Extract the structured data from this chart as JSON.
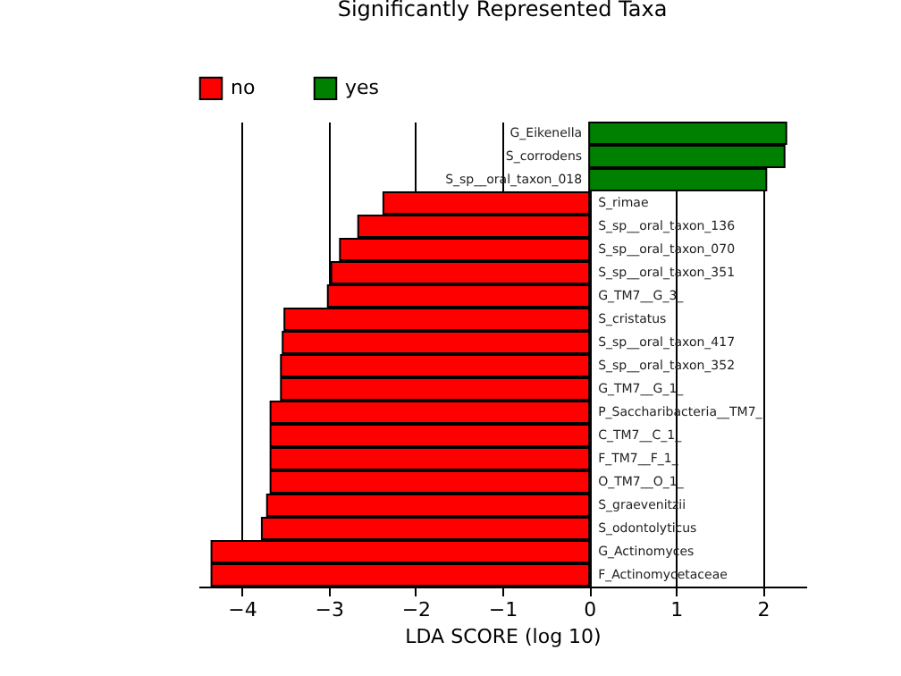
{
  "chart_data": {
    "type": "bar",
    "orientation": "horizontal",
    "title": "Significantly Represented Taxa",
    "xlabel": "LDA SCORE (log 10)",
    "categories": [
      "G_Eikenella",
      "S_corrodens",
      "S_sp__oral_taxon_018",
      "S_rimae",
      "S_sp__oral_taxon_136",
      "S_sp__oral_taxon_070",
      "S_sp__oral_taxon_351",
      "G_TM7__G_3_",
      "S_cristatus",
      "S_sp__oral_taxon_417",
      "S_sp__oral_taxon_352",
      "G_TM7__G_1_",
      "P_Saccharibacteria__TM7_",
      "C_TM7__C_1_",
      "F_TM7__F_1_",
      "O_TM7__O_1_",
      "S_graevenitzii",
      "S_odontolyticus",
      "G_Actinomyces",
      "F_Actinomycetaceae"
    ],
    "series": [
      {
        "name": "no",
        "color": "#ff0000",
        "values": [
          null,
          null,
          null,
          -2.37,
          -2.66,
          -2.87,
          -2.97,
          -3.01,
          -3.51,
          -3.53,
          -3.55,
          -3.55,
          -3.67,
          -3.67,
          -3.67,
          -3.67,
          -3.71,
          -3.77,
          -4.35,
          -4.35
        ]
      },
      {
        "name": "yes",
        "color": "#008000",
        "values": [
          2.27,
          2.25,
          2.04,
          null,
          null,
          null,
          null,
          null,
          null,
          null,
          null,
          null,
          null,
          null,
          null,
          null,
          null,
          null,
          null,
          null
        ]
      }
    ],
    "xlim": [
      -4.5,
      2.5
    ],
    "xticks": [
      {
        "value": -4,
        "label": "−4"
      },
      {
        "value": -3,
        "label": "−3"
      },
      {
        "value": -2,
        "label": "−2"
      },
      {
        "value": -1,
        "label": "−1"
      },
      0,
      1,
      2
    ],
    "grid": "x",
    "legend": "top left"
  }
}
